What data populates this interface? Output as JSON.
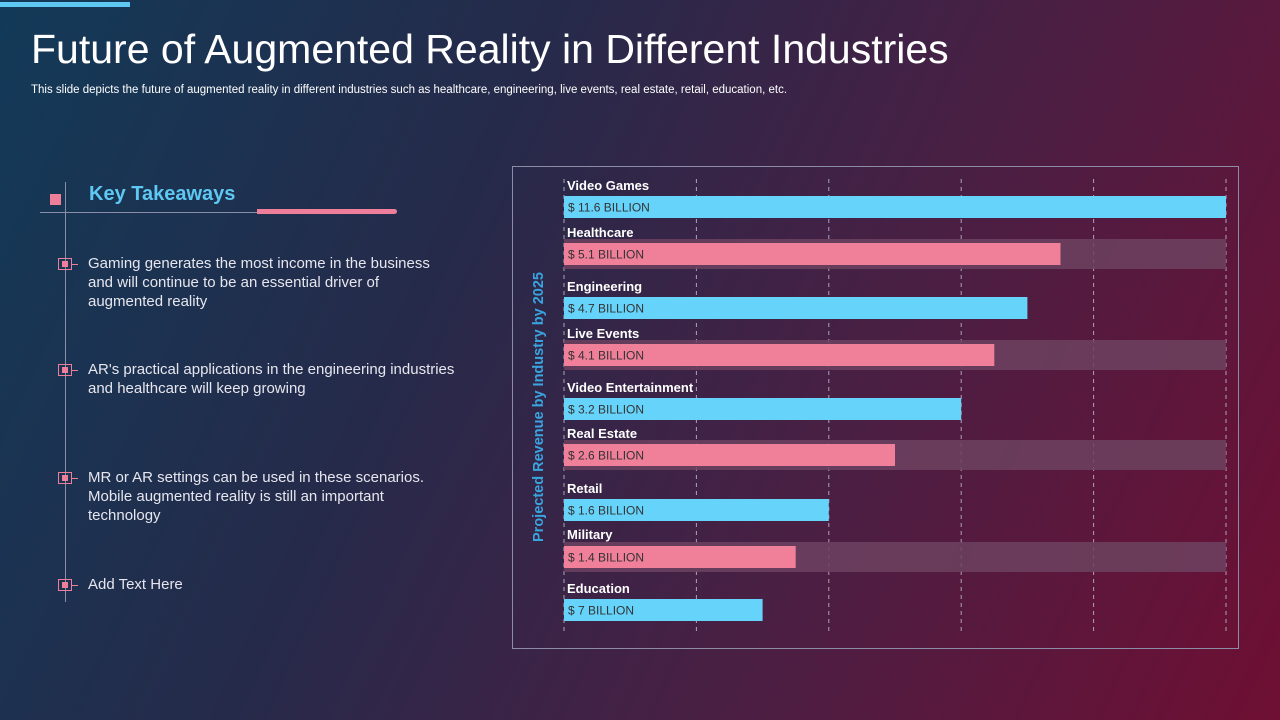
{
  "slide": {
    "title": "Future of Augmented Reality in Different Industries",
    "subtitle": "This slide depicts the future of augmented reality in different industries such as healthcare, engineering, live events, real estate, retail, education, etc."
  },
  "takeaways": {
    "heading": "Key Takeaways",
    "items": [
      "Gaming generates the most income in the business and will continue to be an essential driver of augmented reality",
      "AR's practical applications in the engineering industries and healthcare will keep growing",
      "MR or AR settings can be used in these scenarios. Mobile augmented reality is still an important technology",
      "Add Text Here"
    ]
  },
  "colors": {
    "accent_blue": "#5ec8f2",
    "accent_pink": "#ef7e9b",
    "bar_blue": "#66d3fa",
    "bar_pink": "#f07f9a",
    "bar_track": "#6d4260"
  },
  "chart_data": {
    "type": "bar",
    "orientation": "horizontal",
    "ylabel": "Projected Revenue by Industry by 2025",
    "categories": [
      "Video Games",
      "Healthcare",
      "Engineering",
      "Live Events",
      "Video Entertainment",
      "Real Estate",
      "Retail",
      "Military",
      "Education"
    ],
    "values": [
      11.6,
      5.1,
      4.7,
      4.1,
      3.2,
      2.6,
      1.6,
      1.4,
      7
    ],
    "value_labels": [
      "$ 11.6 BILLION",
      "$ 5.1 BILLION",
      "$ 4.7 BILLION",
      "$ 4.1 BILLION",
      "$ 3.2 BILLION",
      "$ 2.6 BILLION",
      "$ 1.6 BILLION",
      "$ 1.4 BILLION",
      "$ 7 BILLION"
    ],
    "bar_fill_fraction": [
      1.0,
      0.75,
      0.7,
      0.65,
      0.6,
      0.5,
      0.4,
      0.35,
      0.3
    ],
    "bar_colors": [
      "blue",
      "pink",
      "blue",
      "pink",
      "blue",
      "pink",
      "blue",
      "pink",
      "blue"
    ],
    "background_track": [
      false,
      true,
      false,
      true,
      false,
      true,
      false,
      true,
      false
    ],
    "grid": "vertical-dashed"
  }
}
